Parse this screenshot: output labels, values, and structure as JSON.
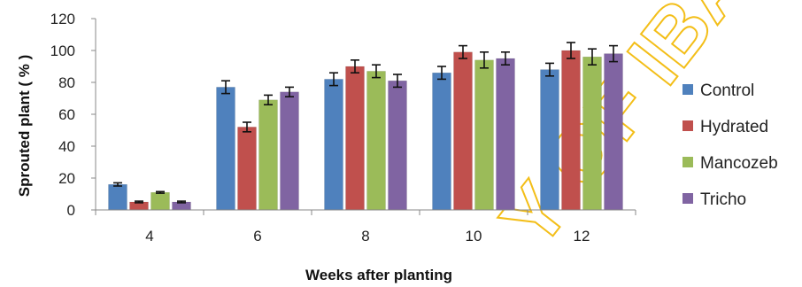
{
  "chart_data": {
    "type": "bar",
    "title": "",
    "xlabel": "Weeks after planting",
    "ylabel": "Sprouted plant ( % )",
    "ylim": [
      0,
      120
    ],
    "yticks": [
      "0",
      "20",
      "40",
      "60",
      "80",
      "100",
      "120"
    ],
    "grid": false,
    "legend_position": "right",
    "error_bars": true,
    "categories": [
      "4",
      "6",
      "8",
      "10",
      "12"
    ],
    "series": [
      {
        "name": "Control",
        "color": "#4f81bd",
        "values": [
          16,
          77,
          82,
          86,
          88
        ],
        "errors": [
          1,
          4,
          4,
          4,
          4
        ]
      },
      {
        "name": "Hydrated",
        "color": "#c0504d",
        "values": [
          5,
          52,
          90,
          99,
          100
        ],
        "errors": [
          0.5,
          3,
          4,
          4,
          5
        ]
      },
      {
        "name": "Mancozeb",
        "color": "#9bbb59",
        "values": [
          11,
          69,
          87,
          94,
          96
        ],
        "errors": [
          0.5,
          3,
          4,
          5,
          5
        ]
      },
      {
        "name": "Tricho",
        "color": "#8064a2",
        "values": [
          5,
          74,
          81,
          95,
          98
        ],
        "errors": [
          0.5,
          3,
          4,
          4,
          5
        ]
      }
    ]
  }
}
